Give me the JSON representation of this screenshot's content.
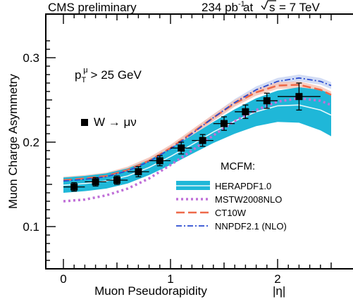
{
  "header": {
    "experiment": "CMS preliminary",
    "luminosity_value": "234 pb",
    "luminosity_exponent": "-1",
    "energy_prefix": "at",
    "energy_symbol": "s",
    "energy_value": "= 7 TeV"
  },
  "cut_label": {
    "base": "p",
    "sub": "T",
    "sup": "μ",
    "rest": "> 25 GeV"
  },
  "data_label": "W → μν",
  "legend": {
    "title": "MCFM:",
    "placement": "lower-right"
  },
  "colors": {
    "herapdf_band": "#1fb7d8",
    "herapdf_center": "#e6f7fb",
    "mstw": "#c070d8",
    "ct10w": "#ee6a4a",
    "ct10w_band": "#f6c3b4",
    "nnpdf": "#2a4bd0",
    "nnpdf_band": "#c7d3f2",
    "data": "#000000"
  },
  "chart_data": {
    "type": "line",
    "title": "",
    "xlabel": "Muon Pseudorapidity",
    "xlabel_symbol": "|η|",
    "ylabel": "Muon Charge Asymmetry",
    "xlim": [
      0.0,
      2.5
    ],
    "ylim": [
      0.06,
      0.325
    ],
    "x_ticks": [
      0,
      1,
      2
    ],
    "x_tick_labels": [
      "0",
      "1",
      "2"
    ],
    "y_ticks": [
      0.1,
      0.2,
      0.3
    ],
    "y_tick_labels": [
      "0.1",
      "0.2",
      "0.3"
    ],
    "data_series": {
      "name": "W → μν",
      "x": [
        0.1,
        0.3,
        0.5,
        0.7,
        0.9,
        1.1,
        1.3,
        1.5,
        1.7,
        1.9,
        2.2
      ],
      "x_err": [
        0.1,
        0.1,
        0.1,
        0.1,
        0.1,
        0.1,
        0.1,
        0.1,
        0.1,
        0.1,
        0.2
      ],
      "y": [
        0.147,
        0.153,
        0.155,
        0.165,
        0.178,
        0.193,
        0.202,
        0.222,
        0.236,
        0.249,
        0.254
      ],
      "y_err": [
        0.005,
        0.005,
        0.005,
        0.006,
        0.006,
        0.007,
        0.007,
        0.008,
        0.008,
        0.009,
        0.016
      ]
    },
    "series": [
      {
        "name": "HERAPDF1.0",
        "style": "band",
        "x": [
          0.0,
          0.2,
          0.4,
          0.6,
          0.8,
          1.0,
          1.2,
          1.4,
          1.6,
          1.8,
          2.0,
          2.2,
          2.4,
          2.5
        ],
        "center": [
          0.149,
          0.151,
          0.154,
          0.16,
          0.17,
          0.183,
          0.197,
          0.212,
          0.225,
          0.236,
          0.243,
          0.244,
          0.238,
          0.232
        ],
        "low": [
          0.14,
          0.142,
          0.145,
          0.151,
          0.161,
          0.173,
          0.186,
          0.199,
          0.21,
          0.219,
          0.224,
          0.223,
          0.214,
          0.207
        ],
        "high": [
          0.158,
          0.16,
          0.163,
          0.169,
          0.179,
          0.193,
          0.208,
          0.224,
          0.239,
          0.252,
          0.261,
          0.265,
          0.262,
          0.257
        ]
      },
      {
        "name": "MSTW2008NLO",
        "style": "dotted",
        "x": [
          0.0,
          0.2,
          0.4,
          0.6,
          0.8,
          1.0,
          1.2,
          1.4,
          1.6,
          1.8,
          2.0,
          2.2,
          2.4,
          2.5
        ],
        "y": [
          0.13,
          0.132,
          0.137,
          0.145,
          0.157,
          0.173,
          0.19,
          0.208,
          0.225,
          0.238,
          0.248,
          0.252,
          0.249,
          0.244
        ]
      },
      {
        "name": "CT10W",
        "style": "dashed",
        "x": [
          0.0,
          0.2,
          0.4,
          0.6,
          0.8,
          1.0,
          1.2,
          1.4,
          1.6,
          1.8,
          2.0,
          2.2,
          2.4,
          2.5
        ],
        "y": [
          0.155,
          0.157,
          0.16,
          0.167,
          0.178,
          0.193,
          0.211,
          0.229,
          0.246,
          0.259,
          0.267,
          0.268,
          0.262,
          0.256
        ]
      },
      {
        "name": "NNPDF2.1 (NLO)",
        "style": "dashdot",
        "x": [
          0.0,
          0.2,
          0.4,
          0.6,
          0.8,
          1.0,
          1.2,
          1.4,
          1.6,
          1.8,
          2.0,
          2.2,
          2.4,
          2.5
        ],
        "y": [
          0.154,
          0.156,
          0.159,
          0.166,
          0.177,
          0.192,
          0.21,
          0.229,
          0.247,
          0.262,
          0.272,
          0.276,
          0.272,
          0.267
        ]
      }
    ]
  }
}
